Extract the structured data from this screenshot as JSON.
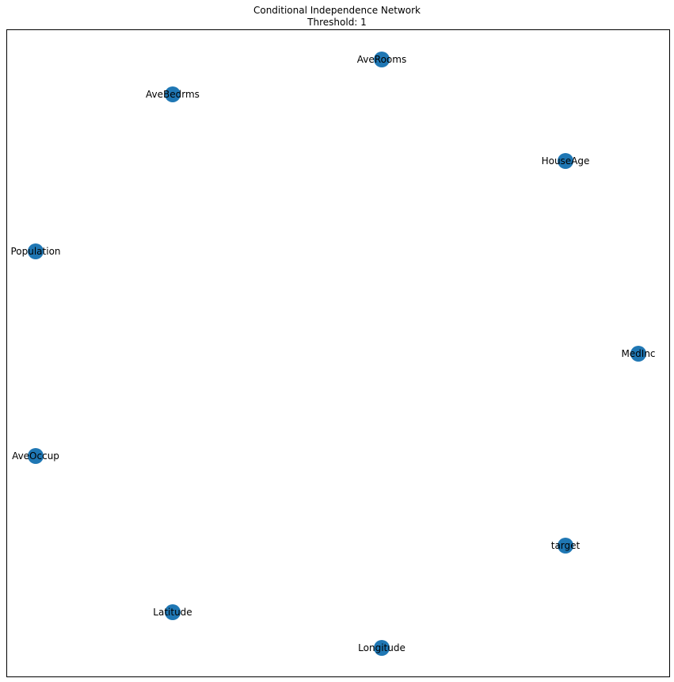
{
  "title": "Conditional Independence Network",
  "subtitle": "Threshold: 1",
  "node_color": "#1f77b4",
  "nodes": [
    {
      "id": "MedInc",
      "label": "MedInc"
    },
    {
      "id": "HouseAge",
      "label": "HouseAge"
    },
    {
      "id": "AveRooms",
      "label": "AveRooms"
    },
    {
      "id": "AveBedrms",
      "label": "AveBedrms"
    },
    {
      "id": "Population",
      "label": "Population"
    },
    {
      "id": "AveOccup",
      "label": "AveOccup"
    },
    {
      "id": "Latitude",
      "label": "Latitude"
    },
    {
      "id": "Longitude",
      "label": "Longitude"
    },
    {
      "id": "target",
      "label": "target"
    }
  ],
  "edges": []
}
